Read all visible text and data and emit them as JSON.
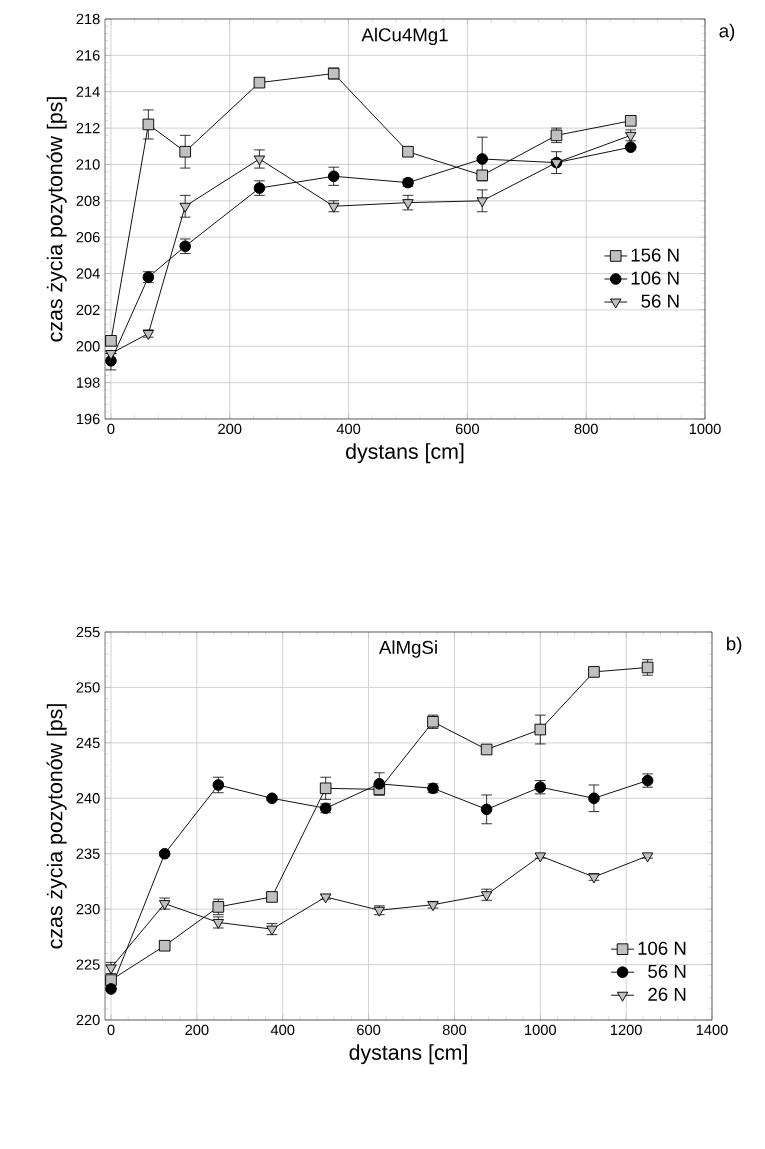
{
  "chart_data": [
    {
      "type": "line",
      "title": "AlCu4Mg1",
      "xlabel": "dystans [cm]",
      "ylabel": "czas życia pozytonów [ps]",
      "annotations": [
        "a)"
      ],
      "x": [
        0,
        63,
        125,
        250,
        375,
        500,
        625,
        750,
        875
      ],
      "xlim": [
        -10,
        1000
      ],
      "ylim": [
        196,
        218
      ],
      "xticks": [
        0,
        200,
        400,
        600,
        800,
        1000
      ],
      "yticks": [
        196,
        198,
        200,
        202,
        204,
        206,
        208,
        210,
        212,
        214,
        216,
        218
      ],
      "grid": true,
      "legend": "right",
      "series": [
        {
          "name": "156 N",
          "color": "#c0c0c0",
          "marker": "square",
          "values": [
            200.3,
            212.2,
            210.7,
            214.5,
            215.0,
            210.7,
            209.4,
            211.6,
            212.4
          ],
          "errors": [
            null,
            0.8,
            0.9,
            0.2,
            0.3,
            0.2,
            null,
            0.4,
            0.2
          ]
        },
        {
          "name": "106 N",
          "color": "#000000",
          "marker": "circle",
          "values": [
            199.2,
            203.8,
            205.5,
            208.7,
            209.35,
            209.0,
            210.3,
            210.1,
            210.95
          ],
          "errors": [
            0.5,
            0.3,
            0.4,
            0.4,
            0.5,
            0.2,
            1.2,
            null,
            null
          ]
        },
        {
          "name": "56 N",
          "color": "#c0c0c0",
          "marker": "triangle",
          "values": [
            199.6,
            200.7,
            207.7,
            210.3,
            207.7,
            207.9,
            208.0,
            210.1,
            211.6
          ],
          "errors": [
            null,
            0.2,
            0.6,
            0.5,
            0.3,
            0.4,
            0.6,
            0.6,
            0.3
          ]
        }
      ]
    },
    {
      "type": "line",
      "title": "AlMgSi",
      "xlabel": "dystans [cm]",
      "ylabel": "czas życia pozytonów [ps]",
      "annotations": [
        "b)"
      ],
      "x": [
        0,
        125,
        250,
        375,
        500,
        625,
        750,
        875,
        1000,
        1125,
        1250
      ],
      "xlim": [
        -14,
        1400
      ],
      "ylim": [
        220,
        255
      ],
      "xticks": [
        0,
        200,
        400,
        600,
        800,
        1000,
        1200,
        1400
      ],
      "yticks": [
        220,
        225,
        230,
        235,
        240,
        245,
        250,
        255
      ],
      "grid": true,
      "legend": "bottom right",
      "series": [
        {
          "name": "106 N",
          "color": "#c0c0c0",
          "marker": "square",
          "values": [
            223.6,
            226.7,
            230.2,
            231.1,
            240.9,
            240.8,
            246.9,
            244.4,
            246.2,
            251.4,
            251.8
          ],
          "errors": [
            null,
            0.3,
            0.7,
            0.4,
            1.0,
            0.5,
            0.6,
            null,
            1.3,
            0.2,
            0.7
          ]
        },
        {
          "name": "56 N",
          "color": "#000000",
          "marker": "circle",
          "values": [
            222.8,
            235.0,
            241.2,
            240.0,
            239.1,
            241.3,
            240.9,
            239.0,
            241.0,
            240.0,
            241.6
          ],
          "errors": [
            null,
            0.2,
            0.7,
            0.2,
            0.4,
            1.0,
            0.4,
            1.3,
            0.6,
            1.2,
            0.6
          ]
        },
        {
          "name": "26 N",
          "color": "#c0c0c0",
          "marker": "triangle",
          "values": [
            224.7,
            230.5,
            228.8,
            228.2,
            231.1,
            229.9,
            230.4,
            231.3,
            234.8,
            232.9,
            234.8
          ],
          "errors": [
            0.5,
            0.5,
            0.5,
            0.5,
            0.2,
            0.4,
            0.3,
            0.5,
            0.2,
            0.3,
            0.2
          ]
        }
      ]
    }
  ]
}
